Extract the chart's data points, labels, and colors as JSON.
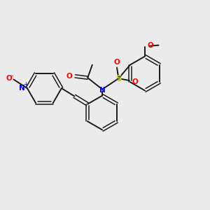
{
  "background_color": "#ebebeb",
  "bond_color": "#1a1a1a",
  "nitrogen_color": "#0000ff",
  "oxygen_color": "#ff0000",
  "sulfur_color": "#cccc00",
  "figsize": [
    3.0,
    3.0
  ],
  "dpi": 100,
  "xlim": [
    0,
    10
  ],
  "ylim": [
    0,
    10
  ]
}
